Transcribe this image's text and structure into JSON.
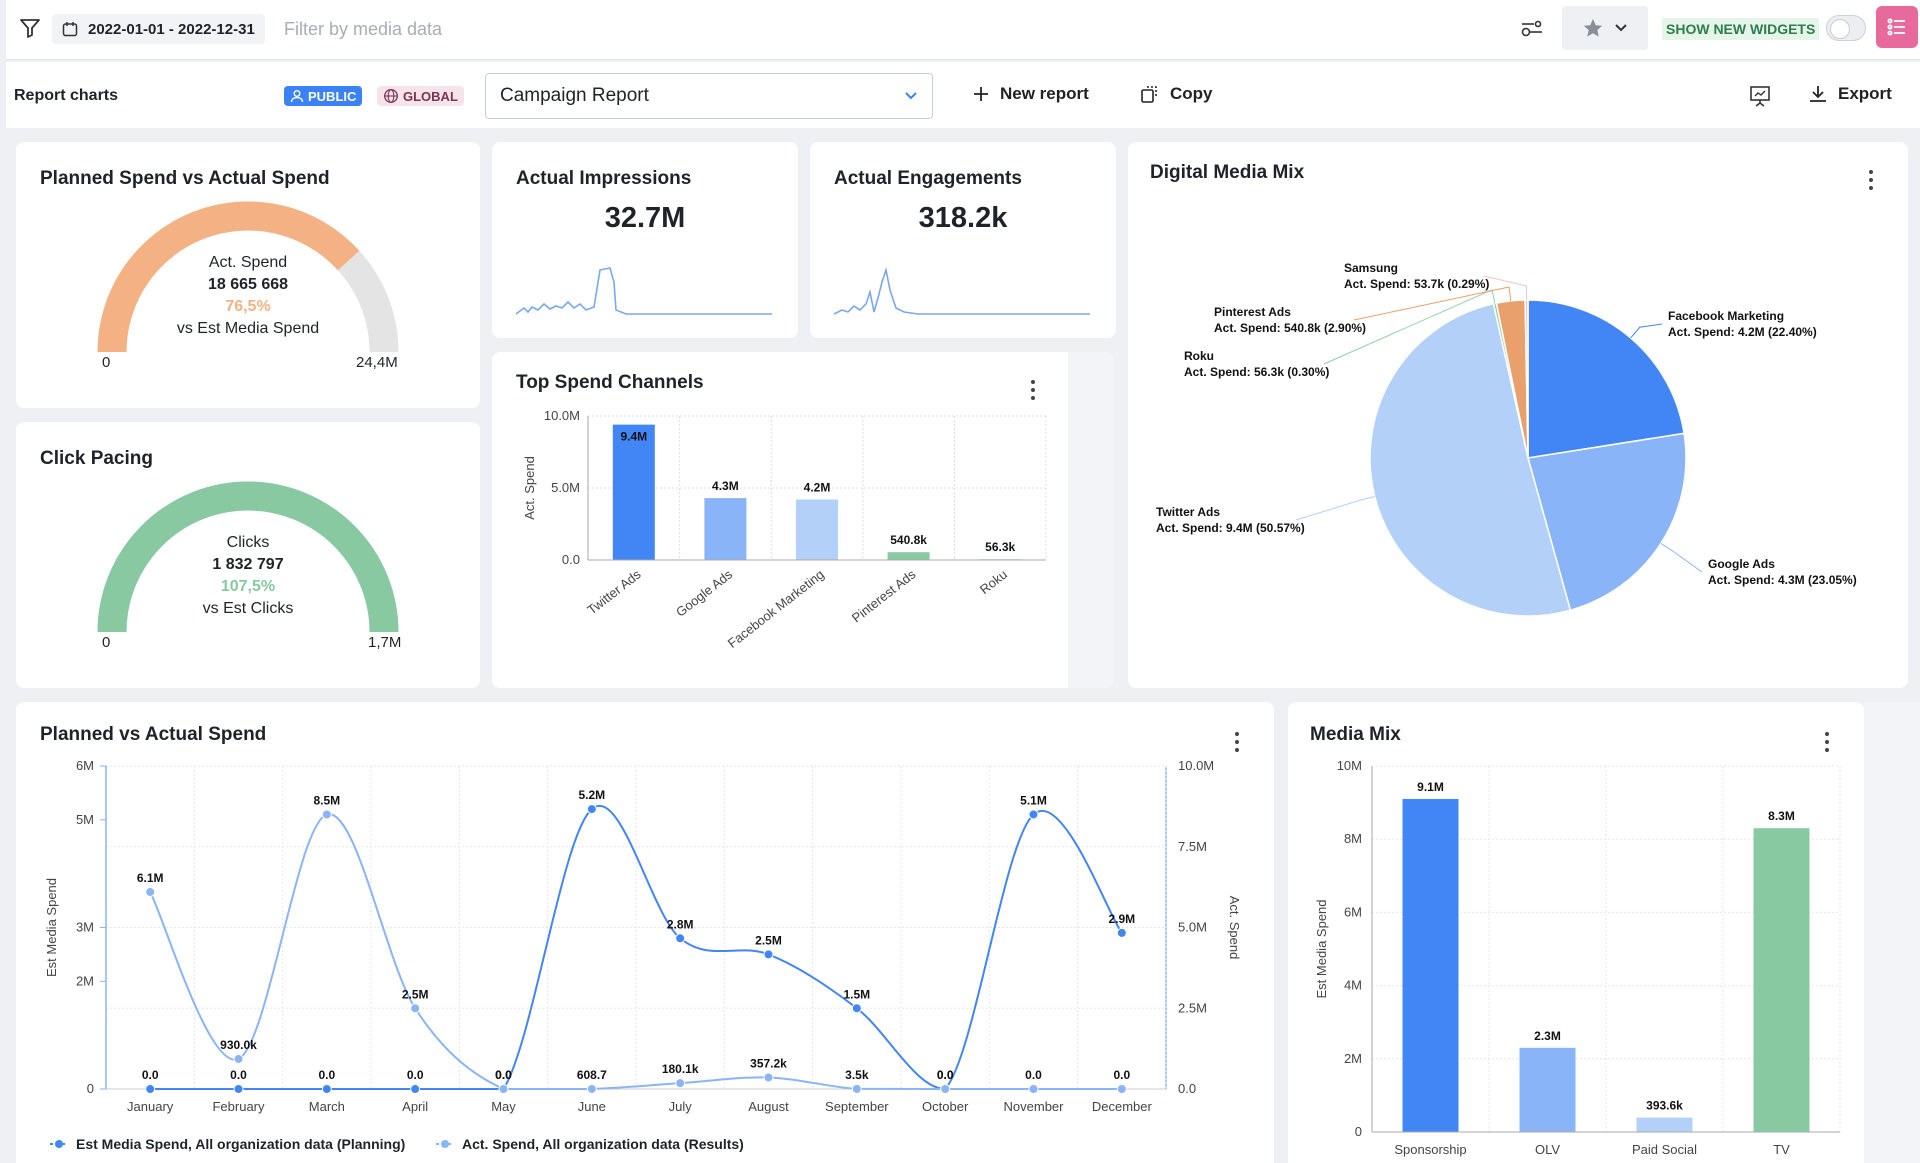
{
  "topbar": {
    "date_range": "2022-01-01 - 2022-12-31",
    "filter_placeholder": "Filter by media data",
    "show_new_widgets": "SHOW NEW WIDGETS"
  },
  "reportbar": {
    "label": "Report charts",
    "public": "PUBLIC",
    "global": "GLOBAL",
    "selected_report": "Campaign Report",
    "new_report": "New report",
    "copy": "Copy",
    "export": "Export"
  },
  "colors": {
    "blue": "#4285f4",
    "light_blue": "#8ab4f8",
    "pale_blue": "#b3d0f9",
    "green": "#88c9a1",
    "orange": "#f4b183",
    "gauge_bg": "#e4e4e4"
  },
  "gauge_spend": {
    "title": "Planned Spend vs Actual Spend",
    "metric": "Act. Spend",
    "value": "18 665 668",
    "percent": "76,5%",
    "compare": "vs Est Media Spend",
    "min": "0",
    "max": "24,4M",
    "fraction": 0.765
  },
  "gauge_clicks": {
    "title": "Click Pacing",
    "metric": "Clicks",
    "value": "1 832 797",
    "percent": "107,5%",
    "compare": "vs Est Clicks",
    "min": "0",
    "max": "1,7M",
    "fraction": 1.0
  },
  "kpi_impressions": {
    "title": "Actual Impressions",
    "value": "32.7M"
  },
  "kpi_engagements": {
    "title": "Actual Engagements",
    "value": "318.2k"
  },
  "top_spend": {
    "title": "Top Spend Channels",
    "ylabel": "Act. Spend",
    "yticks": [
      "10.0M",
      "5.0M",
      "0.0"
    ]
  },
  "digital_mix": {
    "title": "Digital Media Mix"
  },
  "planned_actual": {
    "title": "Planned vs Actual Spend",
    "ylabel_left": "Est Media Spend",
    "ylabel_right": "Act. Spend",
    "yticks_left": [
      "6M",
      "5M",
      "3M",
      "2M",
      "0"
    ],
    "yticks_right": [
      "10.0M",
      "7.5M",
      "5.0M",
      "2.5M",
      "0.0"
    ],
    "legend": [
      "Est Media Spend, All organization data (Planning)",
      "Act. Spend, All organization data (Results)"
    ]
  },
  "media_mix": {
    "title": "Media Mix",
    "ylabel": "Est Media Spend",
    "yticks": [
      "10M",
      "8M",
      "6M",
      "4M",
      "2M",
      "0"
    ]
  },
  "chart_data": [
    {
      "type": "bar",
      "title": "Top Spend Channels",
      "categories": [
        "Twitter Ads",
        "Google Ads",
        "Facebook Marketing",
        "Pinterest Ads",
        "Roku"
      ],
      "values": [
        9400000,
        4300000,
        4200000,
        540800,
        56300
      ],
      "labels": [
        "9.4M",
        "4.3M",
        "4.2M",
        "540.8k",
        "56.3k"
      ],
      "ylabel": "Act. Spend",
      "ylim": [
        0,
        10000000
      ]
    },
    {
      "type": "pie",
      "title": "Digital Media Mix",
      "slices": [
        {
          "name": "Facebook Marketing",
          "label": "Act. Spend: 4.2M (22.40%)",
          "value": 22.4
        },
        {
          "name": "Google Ads",
          "label": "Act. Spend: 4.3M (23.05%)",
          "value": 23.05
        },
        {
          "name": "Twitter Ads",
          "label": "Act. Spend: 9.4M (50.57%)",
          "value": 50.57
        },
        {
          "name": "Roku",
          "label": "Act. Spend: 56.3k (0.30%)",
          "value": 0.3
        },
        {
          "name": "Pinterest Ads",
          "label": "Act. Spend: 540.8k (2.90%)",
          "value": 2.9
        },
        {
          "name": "Samsung",
          "label": "Act. Spend: 53.7k (0.29%)",
          "value": 0.29
        }
      ]
    },
    {
      "type": "line",
      "title": "Planned vs Actual Spend",
      "categories": [
        "January",
        "February",
        "March",
        "April",
        "May",
        "June",
        "July",
        "August",
        "September",
        "October",
        "November",
        "December"
      ],
      "series": [
        {
          "name": "Est Media Spend, All organization data (Planning)",
          "values": [
            0,
            0,
            0,
            0,
            0,
            5200000,
            2800000,
            2500000,
            1500000,
            0,
            5100000,
            2900000
          ],
          "labels": [
            "0.0",
            "0.0",
            "0.0",
            "0.0",
            "0.0",
            "5.2M",
            "2.8M",
            "2.5M",
            "1.5M",
            "0.0",
            "5.1M",
            "2.9M"
          ],
          "axis": "left",
          "ylim": [
            0,
            6000000
          ]
        },
        {
          "name": "Act. Spend, All organization data (Results)",
          "values": [
            6100000,
            930000,
            8500000,
            2500000,
            0,
            608.7,
            180100,
            357200,
            3500,
            0,
            0,
            0
          ],
          "labels": [
            "6.1M",
            "930.0k",
            "8.5M",
            "2.5M",
            "0.0",
            "608.7",
            "180.1k",
            "357.2k",
            "3.5k",
            "0.0",
            "0.0",
            "0.0"
          ],
          "axis": "right",
          "ylim": [
            0,
            10000000
          ]
        }
      ]
    },
    {
      "type": "bar",
      "title": "Media Mix",
      "categories": [
        "Sponsorship",
        "OLV",
        "Paid Social",
        "TV"
      ],
      "values": [
        9100000,
        2300000,
        393600,
        8300000
      ],
      "labels": [
        "9.1M",
        "2.3M",
        "393.6k",
        "8.3M"
      ],
      "ylabel": "Est Media Spend",
      "ylim": [
        0,
        10000000
      ]
    }
  ]
}
